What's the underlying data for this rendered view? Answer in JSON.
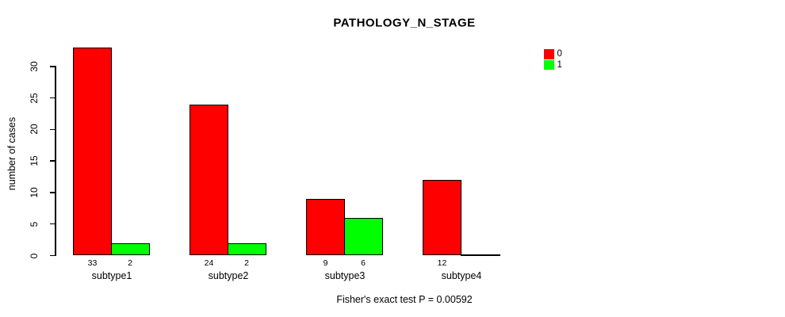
{
  "chart_data": {
    "type": "bar",
    "title": "PATHOLOGY_N_STAGE",
    "ylabel": "number of cases",
    "xlabel": "",
    "categories": [
      "subtype1",
      "subtype2",
      "subtype3",
      "subtype4"
    ],
    "series": [
      {
        "name": "0",
        "color": "#ff0000",
        "values": [
          33,
          24,
          9,
          12
        ]
      },
      {
        "name": "1",
        "color": "#00ff00",
        "values": [
          2,
          2,
          6,
          0
        ]
      }
    ],
    "ylim": [
      0,
      33
    ],
    "yticks": [
      0,
      5,
      10,
      15,
      20,
      25,
      30
    ],
    "grid": false,
    "legend_position": "top-right",
    "annotation": "Fisher's exact test P = 0.00592"
  },
  "colors": {
    "series0": "#ff0000",
    "series1": "#00ff00",
    "axis": "#000000",
    "background": "#ffffff"
  }
}
